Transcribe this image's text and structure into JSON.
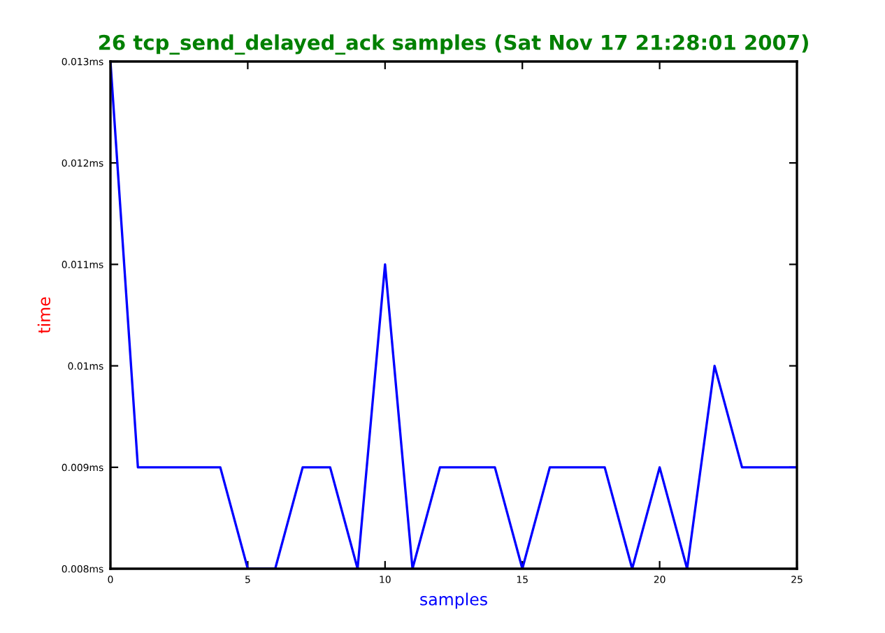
{
  "chart_data": {
    "type": "line",
    "title": "26 tcp_send_delayed_ack samples (Sat Nov 17 21:28:01 2007)",
    "xlabel": "samples",
    "ylabel": "time",
    "x": [
      0,
      1,
      2,
      3,
      4,
      5,
      6,
      7,
      8,
      9,
      10,
      11,
      12,
      13,
      14,
      15,
      16,
      17,
      18,
      19,
      20,
      21,
      22,
      23,
      24,
      25
    ],
    "series": [
      {
        "color": "#0000ff",
        "values": [
          0.013,
          0.009,
          0.009,
          0.009,
          0.009,
          0.008,
          0.008,
          0.009,
          0.009,
          0.008,
          0.011,
          0.008,
          0.009,
          0.009,
          0.009,
          0.008,
          0.009,
          0.009,
          0.009,
          0.008,
          0.009,
          0.008,
          0.01,
          0.009,
          0.009,
          0.009
        ]
      }
    ],
    "xlim": [
      0,
      25
    ],
    "ylim": [
      0.008,
      0.013
    ],
    "xticks": [
      0,
      5,
      10,
      15,
      20,
      25
    ],
    "yticks": [
      {
        "value": 0.008,
        "label": "0.008ms"
      },
      {
        "value": 0.009,
        "label": "0.009ms"
      },
      {
        "value": 0.01,
        "label": "0.01ms"
      },
      {
        "value": 0.011,
        "label": "0.011ms"
      },
      {
        "value": 0.012,
        "label": "0.012ms"
      },
      {
        "value": 0.013,
        "label": "0.013ms"
      }
    ],
    "grid": false,
    "legend": false,
    "marker": "none",
    "line_style": "solid"
  }
}
